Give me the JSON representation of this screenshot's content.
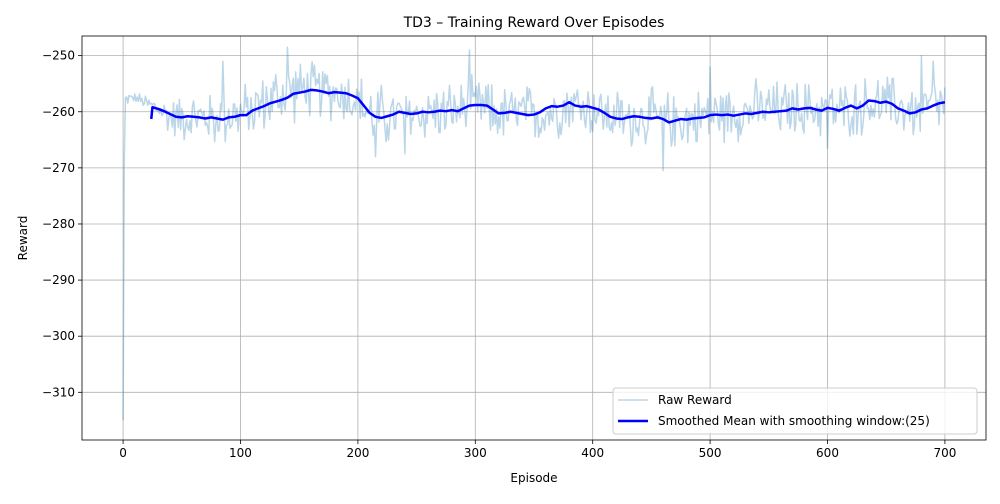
{
  "chart_data": {
    "type": "line",
    "title": "TD3 – Training Reward Over Episodes",
    "xlabel": "Episode",
    "ylabel": "Reward",
    "xlim": [
      -35,
      735
    ],
    "ylim": [
      -318.5,
      -246.5
    ],
    "xticks": [
      0,
      100,
      200,
      300,
      400,
      500,
      600,
      700
    ],
    "xtick_labels": [
      "0",
      "100",
      "200",
      "300",
      "400",
      "500",
      "600",
      "700"
    ],
    "yticks": [
      -250,
      -260,
      -270,
      -280,
      -290,
      -300,
      -310
    ],
    "ytick_labels": [
      "−250",
      "−260",
      "−270",
      "−280",
      "−290",
      "−300",
      "−310"
    ],
    "grid": true,
    "legend_position": "bottom-right",
    "series": [
      {
        "name": "Raw Reward",
        "color": "#1f77b4",
        "opacity": 0.3,
        "line_width": 1.5,
        "points_count": 701,
        "x_start": 0,
        "x_end": 700,
        "y_first": -315,
        "envelope": {
          "x": [
            0,
            1,
            2,
            5,
            10,
            20,
            30,
            40,
            50,
            60,
            70,
            80,
            90,
            100,
            110,
            120,
            130,
            140,
            150,
            160,
            170,
            180,
            190,
            200,
            210,
            220,
            230,
            240,
            250,
            260,
            270,
            280,
            290,
            300,
            310,
            320,
            330,
            340,
            350,
            360,
            370,
            380,
            390,
            400,
            410,
            420,
            430,
            440,
            450,
            460,
            470,
            480,
            490,
            500,
            510,
            520,
            530,
            540,
            550,
            560,
            570,
            580,
            590,
            600,
            610,
            620,
            630,
            640,
            650,
            660,
            670,
            680,
            690,
            700
          ],
          "y_center": [
            -315,
            -270,
            -258,
            -257.5,
            -257.5,
            -258.5,
            -259.5,
            -261,
            -261,
            -261,
            -261,
            -261.5,
            -260.5,
            -260.5,
            -259.5,
            -258.5,
            -257.5,
            -256.5,
            -256,
            -256,
            -256.5,
            -256.5,
            -257,
            -258,
            -260.5,
            -261,
            -261,
            -260.5,
            -260.5,
            -260,
            -260,
            -260,
            -259.5,
            -259,
            -259.5,
            -260.5,
            -260.5,
            -260,
            -260.5,
            -260.5,
            -259.5,
            -258.5,
            -259,
            -259.5,
            -260.5,
            -261,
            -261.5,
            -261,
            -261,
            -261.5,
            -261.5,
            -261.5,
            -261,
            -260.5,
            -260.5,
            -260,
            -260,
            -259.5,
            -259.5,
            -259.5,
            -259.5,
            -259.5,
            -259.5,
            -259.5,
            -260,
            -259.5,
            -259,
            -258.5,
            -258.5,
            -259,
            -260,
            -260,
            -259,
            -258.5
          ],
          "y_spread": [
            0,
            5,
            2,
            1,
            1,
            2,
            3,
            4,
            5,
            5,
            5,
            6,
            6,
            6,
            6,
            6,
            7,
            7,
            6,
            6,
            6,
            6,
            6,
            6,
            7,
            7,
            6,
            6,
            6,
            6,
            6,
            6,
            6,
            6,
            6,
            6,
            6,
            6,
            6,
            6,
            6,
            6,
            6,
            6,
            6,
            6,
            6,
            6,
            6,
            6,
            6,
            6,
            6,
            6,
            6,
            6,
            6,
            6,
            6,
            6,
            6,
            6,
            6,
            6,
            6,
            6,
            6,
            6,
            6,
            6,
            6,
            6,
            6,
            6
          ]
        },
        "notable_points": [
          {
            "x": 85,
            "y": -251
          },
          {
            "x": 140,
            "y": -248.5
          },
          {
            "x": 215,
            "y": -268
          },
          {
            "x": 240,
            "y": -267.5
          },
          {
            "x": 295,
            "y": -249
          },
          {
            "x": 460,
            "y": -270.5
          },
          {
            "x": 500,
            "y": -252
          },
          {
            "x": 600,
            "y": -266.5
          },
          {
            "x": 680,
            "y": -250
          },
          {
            "x": 690,
            "y": -251
          }
        ]
      },
      {
        "name": "Smoothed Mean with smoothing window:(25)",
        "color": "#0000ff",
        "opacity": 1.0,
        "line_width": 2.5,
        "x": [
          24,
          25,
          30,
          35,
          40,
          45,
          50,
          55,
          60,
          65,
          70,
          75,
          80,
          85,
          90,
          95,
          100,
          105,
          110,
          115,
          120,
          125,
          130,
          135,
          140,
          145,
          150,
          155,
          160,
          165,
          170,
          175,
          180,
          185,
          190,
          195,
          200,
          205,
          210,
          215,
          220,
          225,
          230,
          235,
          240,
          245,
          250,
          255,
          260,
          265,
          270,
          275,
          280,
          285,
          290,
          295,
          300,
          305,
          310,
          315,
          320,
          325,
          330,
          335,
          340,
          345,
          350,
          355,
          360,
          365,
          370,
          375,
          380,
          385,
          390,
          395,
          400,
          405,
          410,
          415,
          420,
          425,
          430,
          435,
          440,
          445,
          450,
          455,
          460,
          465,
          470,
          475,
          480,
          485,
          490,
          495,
          500,
          505,
          510,
          515,
          520,
          525,
          530,
          535,
          540,
          545,
          550,
          555,
          560,
          565,
          570,
          575,
          580,
          585,
          590,
          595,
          600,
          605,
          610,
          615,
          620,
          625,
          630,
          635,
          640,
          645,
          650,
          655,
          660,
          665,
          670,
          675,
          680,
          685,
          690,
          695,
          700
        ],
        "y": [
          -261.3,
          -259.2,
          -259.5,
          -259.9,
          -260.4,
          -260.9,
          -261.0,
          -260.8,
          -260.9,
          -261.0,
          -261.2,
          -261.0,
          -261.2,
          -261.4,
          -261.0,
          -260.9,
          -260.6,
          -260.6,
          -259.8,
          -259.4,
          -259.0,
          -258.5,
          -258.2,
          -257.9,
          -257.5,
          -256.8,
          -256.6,
          -256.4,
          -256.1,
          -256.2,
          -256.4,
          -256.7,
          -256.5,
          -256.6,
          -256.7,
          -257.1,
          -257.6,
          -258.9,
          -260.2,
          -260.9,
          -261.1,
          -260.8,
          -260.5,
          -260.0,
          -260.2,
          -260.4,
          -260.3,
          -260.0,
          -260.1,
          -260.0,
          -259.8,
          -259.9,
          -259.7,
          -259.9,
          -259.4,
          -258.9,
          -258.8,
          -258.8,
          -258.9,
          -259.6,
          -260.3,
          -260.2,
          -260.0,
          -260.2,
          -260.4,
          -260.6,
          -260.5,
          -260.1,
          -259.4,
          -259.0,
          -259.1,
          -258.9,
          -258.3,
          -258.9,
          -259.1,
          -259.0,
          -259.3,
          -259.6,
          -260.2,
          -260.9,
          -261.2,
          -261.3,
          -261.0,
          -260.8,
          -260.9,
          -261.1,
          -261.2,
          -261.0,
          -261.3,
          -261.9,
          -261.6,
          -261.3,
          -261.4,
          -261.2,
          -261.1,
          -261.0,
          -260.6,
          -260.5,
          -260.6,
          -260.5,
          -260.7,
          -260.5,
          -260.3,
          -260.4,
          -260.2,
          -260.0,
          -260.1,
          -260.0,
          -259.9,
          -259.8,
          -259.4,
          -259.6,
          -259.4,
          -259.3,
          -259.6,
          -259.8,
          -259.3,
          -259.5,
          -259.8,
          -259.3,
          -258.9,
          -259.4,
          -258.9,
          -258.0,
          -258.1,
          -258.4,
          -258.2,
          -258.6,
          -259.4,
          -259.8,
          -260.3,
          -260.1,
          -259.6,
          -259.4,
          -258.9,
          -258.5,
          -258.3
        ]
      }
    ]
  }
}
